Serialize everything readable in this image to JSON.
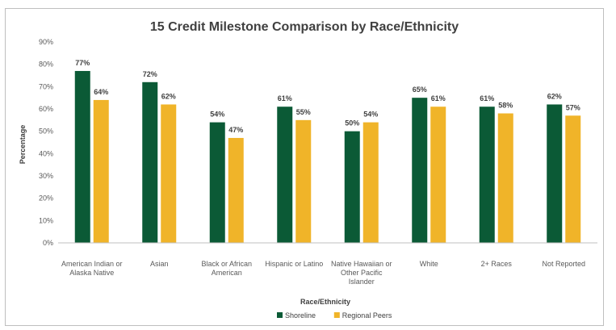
{
  "chart_data": {
    "type": "bar",
    "title": "15 Credit Milestone Comparison by Race/Ethnicity",
    "xlabel": "Race/Ethnicity",
    "ylabel": "Percentage",
    "ylim": [
      0,
      90
    ],
    "yticks": [
      0,
      10,
      20,
      30,
      40,
      50,
      60,
      70,
      80,
      90
    ],
    "tick_suffix": "%",
    "grid": false,
    "legend_position": "bottom",
    "categories": [
      [
        "American Indian or",
        "Alaska Native"
      ],
      [
        "Asian"
      ],
      [
        "Black or African",
        "American"
      ],
      [
        "Hispanic or Latino"
      ],
      [
        "Native Hawaiian or",
        "Other Pacific",
        "Islander"
      ],
      [
        "White"
      ],
      [
        "2+ Races"
      ],
      [
        "Not Reported"
      ]
    ],
    "series": [
      {
        "name": "Shoreline",
        "color": "#0b5a36",
        "values": [
          77,
          72,
          54,
          61,
          50,
          65,
          61,
          62
        ],
        "labels": [
          "77%",
          "72%",
          "54%",
          "61%",
          "50%",
          "65%",
          "61%",
          "62%"
        ]
      },
      {
        "name": "Regional Peers",
        "color": "#f0b429",
        "values": [
          64,
          62,
          47,
          55,
          54,
          61,
          58,
          57
        ],
        "labels": [
          "64%",
          "62%",
          "47%",
          "55%",
          "54%",
          "61%",
          "58%",
          "57%"
        ]
      }
    ]
  }
}
